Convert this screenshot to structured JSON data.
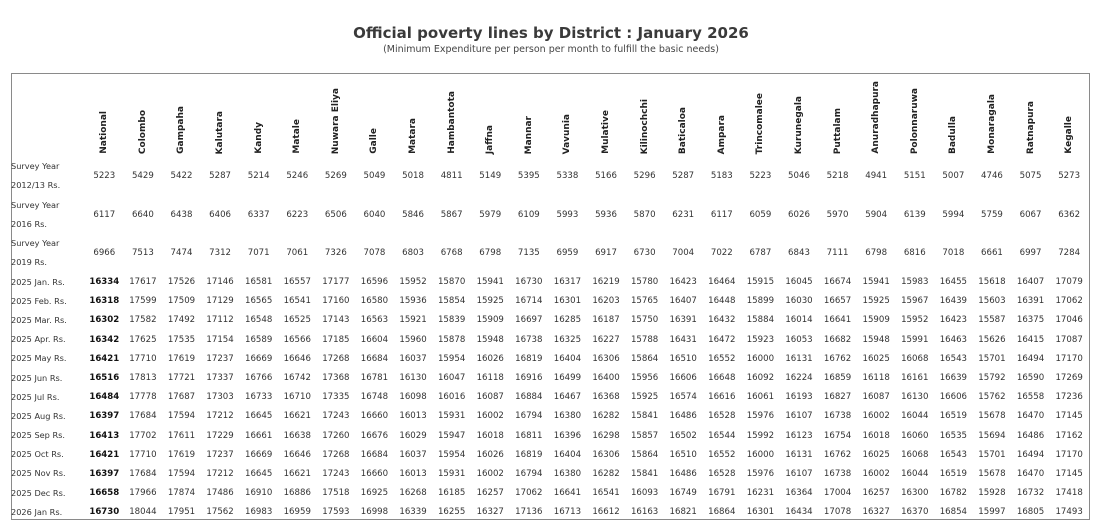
{
  "title": "Official poverty lines by District : January 2026",
  "subtitle": "(Minimum Expenditure per person per month to fulfill the basic needs)",
  "columns": [
    "National",
    "Colombo",
    "Gampaha",
    "Kalutara",
    "Kandy",
    "Matale",
    "Nuwara Eliya",
    "Galle",
    "Matara",
    "Hambantota",
    "Jaffna",
    "Mannar",
    "Vavunia",
    "Mulative",
    "Kilinochchi",
    "Baticaloa",
    "Ampara",
    "Trincomalee",
    "Kurunegala",
    "Puttalam",
    "Anuradhapura",
    "Polonnaruwa",
    "Badulla",
    "Monaragala",
    "Ratnapura",
    "Kegalle"
  ],
  "rows": [
    {
      "label": [
        "Survey Year",
        "2012/13 Rs."
      ],
      "values": [
        "5223",
        "5429",
        "5422",
        "5287",
        "5214",
        "5246",
        "5269",
        "5049",
        "5018",
        "4811",
        "5149",
        "5395",
        "5338",
        "5166",
        "5296",
        "5287",
        "5183",
        "5223",
        "5046",
        "5218",
        "4941",
        "5151",
        "5007",
        "4746",
        "5075",
        "5273"
      ]
    },
    {
      "label": [
        "Survey Year",
        "2016 Rs."
      ],
      "values": [
        "6117",
        "6640",
        "6438",
        "6406",
        "6337",
        "6223",
        "6506",
        "6040",
        "5846",
        "5867",
        "5979",
        "6109",
        "5993",
        "5936",
        "5870",
        "6231",
        "6117",
        "6059",
        "6026",
        "5970",
        "5904",
        "6139",
        "5994",
        "5759",
        "6067",
        "6362"
      ]
    },
    {
      "label": [
        "Survey Year",
        "2019 Rs."
      ],
      "values": [
        "6966",
        "7513",
        "7474",
        "7312",
        "7071",
        "7061",
        "7326",
        "7078",
        "6803",
        "6768",
        "6798",
        "7135",
        "6959",
        "6917",
        "6730",
        "7004",
        "7022",
        "6787",
        "6843",
        "7111",
        "6798",
        "6816",
        "7018",
        "6661",
        "6997",
        "7284"
      ]
    },
    {
      "label": [
        "2025 Jan. Rs."
      ],
      "values": [
        "16334",
        "17617",
        "17526",
        "17146",
        "16581",
        "16557",
        "17177",
        "16596",
        "15952",
        "15870",
        "15941",
        "16730",
        "16317",
        "16219",
        "15780",
        "16423",
        "16464",
        "15915",
        "16045",
        "16674",
        "15941",
        "15983",
        "16455",
        "15618",
        "16407",
        "17079"
      ]
    },
    {
      "label": [
        "2025 Feb. Rs."
      ],
      "values": [
        "16318",
        "17599",
        "17509",
        "17129",
        "16565",
        "16541",
        "17160",
        "16580",
        "15936",
        "15854",
        "15925",
        "16714",
        "16301",
        "16203",
        "15765",
        "16407",
        "16448",
        "15899",
        "16030",
        "16657",
        "15925",
        "15967",
        "16439",
        "15603",
        "16391",
        "17062"
      ]
    },
    {
      "label": [
        "2025 Mar. Rs."
      ],
      "values": [
        "16302",
        "17582",
        "17492",
        "17112",
        "16548",
        "16525",
        "17143",
        "16563",
        "15921",
        "15839",
        "15909",
        "16697",
        "16285",
        "16187",
        "15750",
        "16391",
        "16432",
        "15884",
        "16014",
        "16641",
        "15909",
        "15952",
        "16423",
        "15587",
        "16375",
        "17046"
      ]
    },
    {
      "label": [
        "2025 Apr. Rs."
      ],
      "values": [
        "16342",
        "17625",
        "17535",
        "17154",
        "16589",
        "16566",
        "17185",
        "16604",
        "15960",
        "15878",
        "15948",
        "16738",
        "16325",
        "16227",
        "15788",
        "16431",
        "16472",
        "15923",
        "16053",
        "16682",
        "15948",
        "15991",
        "16463",
        "15626",
        "16415",
        "17087"
      ]
    },
    {
      "label": [
        "2025 May Rs."
      ],
      "values": [
        "16421",
        "17710",
        "17619",
        "17237",
        "16669",
        "16646",
        "17268",
        "16684",
        "16037",
        "15954",
        "16026",
        "16819",
        "16404",
        "16306",
        "15864",
        "16510",
        "16552",
        "16000",
        "16131",
        "16762",
        "16025",
        "16068",
        "16543",
        "15701",
        "16494",
        "17170"
      ]
    },
    {
      "label": [
        "2025 Jun Rs."
      ],
      "values": [
        "16516",
        "17813",
        "17721",
        "17337",
        "16766",
        "16742",
        "17368",
        "16781",
        "16130",
        "16047",
        "16118",
        "16916",
        "16499",
        "16400",
        "15956",
        "16606",
        "16648",
        "16092",
        "16224",
        "16859",
        "16118",
        "16161",
        "16639",
        "15792",
        "16590",
        "17269"
      ]
    },
    {
      "label": [
        "2025 Jul Rs."
      ],
      "values": [
        "16484",
        "17778",
        "17687",
        "17303",
        "16733",
        "16710",
        "17335",
        "16748",
        "16098",
        "16016",
        "16087",
        "16884",
        "16467",
        "16368",
        "15925",
        "16574",
        "16616",
        "16061",
        "16193",
        "16827",
        "16087",
        "16130",
        "16606",
        "15762",
        "16558",
        "17236"
      ]
    },
    {
      "label": [
        "2025 Aug Rs."
      ],
      "values": [
        "16397",
        "17684",
        "17594",
        "17212",
        "16645",
        "16621",
        "17243",
        "16660",
        "16013",
        "15931",
        "16002",
        "16794",
        "16380",
        "16282",
        "15841",
        "16486",
        "16528",
        "15976",
        "16107",
        "16738",
        "16002",
        "16044",
        "16519",
        "15678",
        "16470",
        "17145"
      ]
    },
    {
      "label": [
        "2025 Sep Rs."
      ],
      "values": [
        "16413",
        "17702",
        "17611",
        "17229",
        "16661",
        "16638",
        "17260",
        "16676",
        "16029",
        "15947",
        "16018",
        "16811",
        "16396",
        "16298",
        "15857",
        "16502",
        "16544",
        "15992",
        "16123",
        "16754",
        "16018",
        "16060",
        "16535",
        "15694",
        "16486",
        "17162"
      ]
    },
    {
      "label": [
        "2025 Oct Rs."
      ],
      "values": [
        "16421",
        "17710",
        "17619",
        "17237",
        "16669",
        "16646",
        "17268",
        "16684",
        "16037",
        "15954",
        "16026",
        "16819",
        "16404",
        "16306",
        "15864",
        "16510",
        "16552",
        "16000",
        "16131",
        "16762",
        "16025",
        "16068",
        "16543",
        "15701",
        "16494",
        "17170"
      ]
    },
    {
      "label": [
        "2025 Nov Rs."
      ],
      "values": [
        "16397",
        "17684",
        "17594",
        "17212",
        "16645",
        "16621",
        "17243",
        "16660",
        "16013",
        "15931",
        "16002",
        "16794",
        "16380",
        "16282",
        "15841",
        "16486",
        "16528",
        "15976",
        "16107",
        "16738",
        "16002",
        "16044",
        "16519",
        "15678",
        "16470",
        "17145"
      ]
    },
    {
      "label": [
        "2025 Dec Rs."
      ],
      "values": [
        "16658",
        "17966",
        "17874",
        "17486",
        "16910",
        "16886",
        "17518",
        "16925",
        "16268",
        "16185",
        "16257",
        "17062",
        "16641",
        "16541",
        "16093",
        "16749",
        "16791",
        "16231",
        "16364",
        "17004",
        "16257",
        "16300",
        "16782",
        "15928",
        "16732",
        "17418"
      ]
    },
    {
      "label": [
        "2026 Jan Rs."
      ],
      "values": [
        "16730",
        "18044",
        "17951",
        "17562",
        "16983",
        "16959",
        "17593",
        "16998",
        "16339",
        "16255",
        "16327",
        "17136",
        "16713",
        "16612",
        "16163",
        "16821",
        "16864",
        "16301",
        "16434",
        "17078",
        "16327",
        "16370",
        "16854",
        "15997",
        "16805",
        "17493"
      ]
    }
  ]
}
